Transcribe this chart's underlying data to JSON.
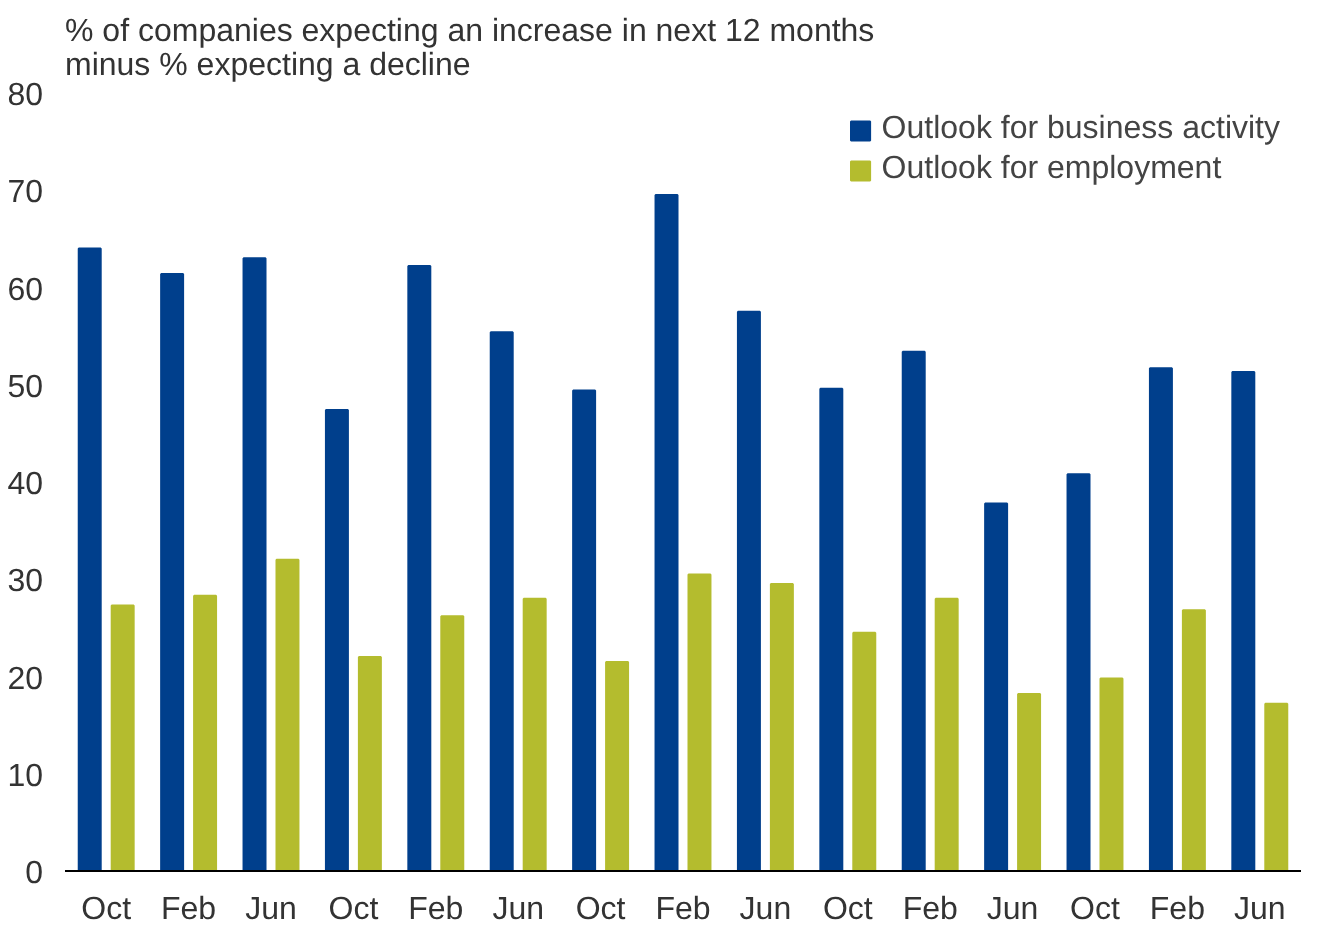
{
  "chart_data": {
    "type": "bar",
    "title": "% of companies expecting an increase in next 12 months minus % expecting a decline",
    "categories": [
      "Oct",
      "Feb",
      "Jun",
      "Oct",
      "Feb",
      "Jun",
      "Oct",
      "Feb",
      "Jun",
      "Oct",
      "Feb",
      "Jun",
      "Oct",
      "Feb",
      "Jun"
    ],
    "series": [
      {
        "name": "Outlook for business activity",
        "color": "#003f8c",
        "values": [
          64,
          61.4,
          63,
          47.4,
          62.2,
          55.4,
          49.4,
          69.5,
          57.5,
          49.6,
          53.4,
          37.8,
          40.8,
          51.7,
          51.3
        ]
      },
      {
        "name": "Outlook for employment",
        "color": "#b4bc2e",
        "values": [
          27.3,
          28.3,
          32,
          22,
          26.2,
          28,
          21.5,
          30.5,
          29.5,
          24.5,
          28,
          18.2,
          19.8,
          26.8,
          17.2
        ]
      }
    ],
    "ylim": [
      0,
      80
    ],
    "yticks": [
      0,
      10,
      20,
      30,
      40,
      50,
      60,
      70,
      80
    ],
    "grid": false,
    "legend": "top right"
  }
}
